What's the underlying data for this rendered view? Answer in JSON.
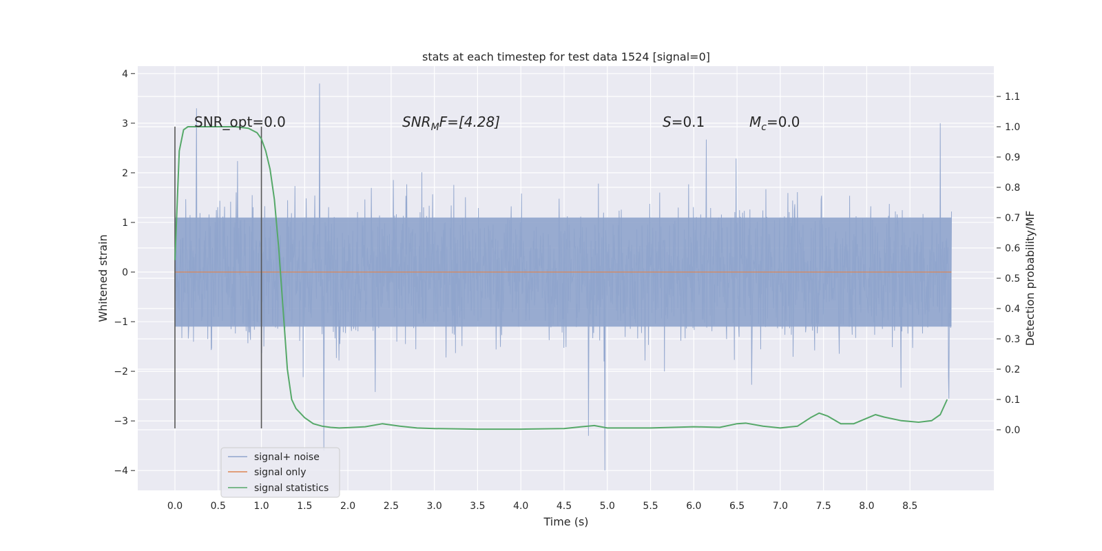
{
  "chart_data": {
    "type": "line",
    "title": "stats at each timestep for test data 1524 [signal=0]",
    "xlabel": "Time (s)",
    "ylabel": "Whitened strain",
    "ylabel_right": "Detection probability/MF",
    "xlim": [
      -0.43,
      9.47
    ],
    "ylim": [
      -4.4,
      4.15
    ],
    "ylim_right": [
      -0.2,
      1.2
    ],
    "xticks": [
      0.0,
      0.5,
      1.0,
      1.5,
      2.0,
      2.5,
      3.0,
      3.5,
      4.0,
      4.5,
      5.0,
      5.5,
      6.0,
      6.5,
      7.0,
      7.5,
      8.0,
      8.5
    ],
    "xtick_labels": [
      "0.0",
      "0.5",
      "1.0",
      "1.5",
      "2.0",
      "2.5",
      "3.0",
      "3.5",
      "4.0",
      "4.5",
      "5.0",
      "5.5",
      "6.0",
      "6.5",
      "7.0",
      "7.5",
      "8.0",
      "8.5"
    ],
    "yticks": [
      4,
      3,
      2,
      1,
      0,
      -1,
      -2,
      -3,
      -4
    ],
    "ytick_labels": [
      "4",
      "3",
      "2",
      "1",
      "0",
      "−1",
      "−2",
      "−3",
      "−4"
    ],
    "yticks_right": [
      1.1,
      1.0,
      0.9,
      0.8,
      0.7,
      0.6,
      0.5,
      0.4,
      0.3,
      0.2,
      0.1,
      0.0
    ],
    "ytick_labels_right": [
      "1.1",
      "1.0",
      "0.9",
      "0.8",
      "0.7",
      "0.6",
      "0.5",
      "0.4",
      "0.3",
      "0.2",
      "0.1",
      "0.0"
    ],
    "grid": true,
    "legend_position": "lower-left",
    "annotations": {
      "snr_opt": "SNR_opt=0.0",
      "snr_mf_base": "SNR",
      "snr_mf_sub": "M",
      "snr_mf_rest": "F=[4.28]",
      "s_base": "S",
      "s_rest": "=0.1",
      "mc_base": "M",
      "mc_sub": "c",
      "mc_rest": "=0.0"
    },
    "vlines": {
      "x": [
        0.0,
        1.0
      ],
      "ymin": -3.15,
      "ymax": 2.93
    },
    "series": [
      {
        "name": "signal+ noise",
        "color": "#8fa4cc",
        "x_range": [
          0.0,
          8.98
        ],
        "samples": 1800,
        "core_amplitude": 1.1,
        "extremes": [
          {
            "x": 0.25,
            "y": 3.3
          },
          {
            "x": 1.67,
            "y": 3.8
          },
          {
            "x": 1.72,
            "y": -3.6
          },
          {
            "x": 4.78,
            "y": -3.3
          },
          {
            "x": 4.97,
            "y": -4.0
          },
          {
            "x": 8.85,
            "y": 3.0
          },
          {
            "x": 8.95,
            "y": -2.55
          }
        ]
      },
      {
        "name": "signal only",
        "color": "#dd8452",
        "x": [
          0.0,
          8.98
        ],
        "y": [
          0.0,
          0.0
        ]
      },
      {
        "name": "signal statistics",
        "color": "#55a868",
        "axis": "right",
        "x": [
          0.0,
          0.05,
          0.1,
          0.15,
          0.2,
          0.3,
          0.5,
          0.7,
          0.85,
          0.95,
          1.0,
          1.05,
          1.1,
          1.15,
          1.2,
          1.25,
          1.3,
          1.35,
          1.4,
          1.5,
          1.6,
          1.7,
          1.8,
          1.9,
          2.0,
          2.2,
          2.4,
          2.6,
          2.8,
          3.0,
          3.5,
          4.0,
          4.5,
          4.7,
          4.85,
          5.0,
          5.5,
          6.0,
          6.3,
          6.5,
          6.6,
          6.8,
          7.0,
          7.2,
          7.35,
          7.45,
          7.55,
          7.7,
          7.85,
          8.0,
          8.1,
          8.2,
          8.4,
          8.6,
          8.75,
          8.85,
          8.93
        ],
        "y": [
          0.56,
          0.92,
          0.99,
          1.0,
          1.0,
          1.0,
          1.0,
          1.0,
          0.995,
          0.98,
          0.96,
          0.92,
          0.86,
          0.76,
          0.6,
          0.4,
          0.2,
          0.1,
          0.07,
          0.04,
          0.02,
          0.012,
          0.008,
          0.006,
          0.007,
          0.01,
          0.02,
          0.012,
          0.006,
          0.004,
          0.002,
          0.002,
          0.004,
          0.01,
          0.014,
          0.006,
          0.006,
          0.01,
          0.008,
          0.02,
          0.022,
          0.012,
          0.006,
          0.012,
          0.04,
          0.055,
          0.045,
          0.02,
          0.02,
          0.038,
          0.05,
          0.042,
          0.03,
          0.025,
          0.03,
          0.05,
          0.1
        ]
      }
    ]
  }
}
